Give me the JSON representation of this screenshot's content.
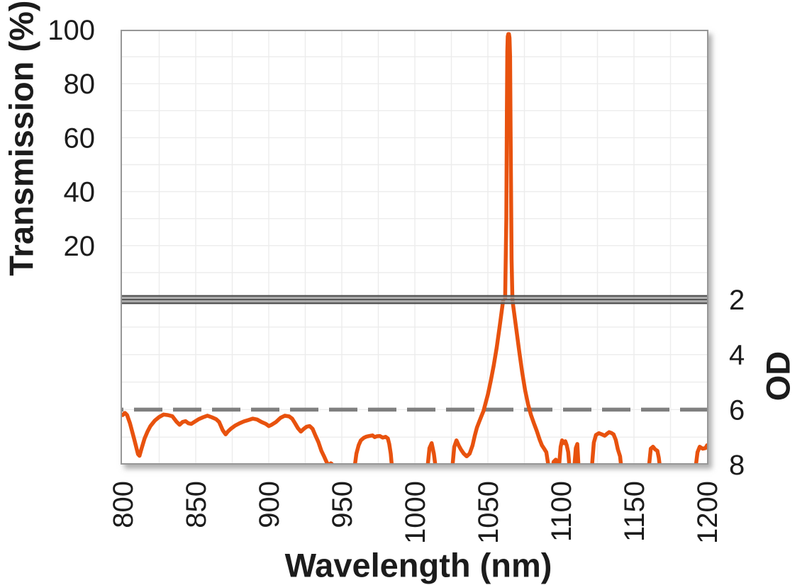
{
  "figure": {
    "background": "#FFFFFF",
    "curve_color": "#E8520E",
    "reference_line_color": "#7F7F7F",
    "grid_color": "#ECECEC",
    "border_color": "#979797",
    "separator_dark": "#555555",
    "separator_light": "#9E9E9E",
    "text_color": "#1C1C1C"
  },
  "chart_data": {
    "type": "line",
    "description": "Laser-line bandpass filter spectrum with broken y-axis: transmission (%) top panel, optical density (OD) bottom panel",
    "x_axis": {
      "label": "Wavelength (nm)",
      "min": 800,
      "max": 1200,
      "ticks": [
        800,
        850,
        900,
        950,
        1000,
        1050,
        1100,
        1150,
        1200
      ],
      "minor_grid_step_nm": 25
    },
    "y_axis_transmission": {
      "label": "Transmission (%)",
      "min": 0,
      "max": 100,
      "ticks": [
        100,
        80,
        60,
        40,
        20
      ],
      "grid_step": 10
    },
    "y_axis_od": {
      "label": "OD",
      "min": 2,
      "max": 8,
      "ticks": [
        2,
        4,
        6,
        8
      ],
      "grid_step": 1,
      "increases": "downward"
    },
    "axis_break_between_panels": true,
    "reference_line": {
      "style": "dashed",
      "od": 6
    },
    "peak": {
      "wavelength_nm": 1064,
      "transmission_pct": 98.4,
      "points_nm_pct": [
        [
          1061.8,
          0
        ],
        [
          1062.6,
          30
        ],
        [
          1063,
          70
        ],
        [
          1063.3,
          92
        ],
        [
          1063.6,
          97.5
        ],
        [
          1064,
          98.4
        ],
        [
          1064.4,
          98.4
        ],
        [
          1064.8,
          97
        ],
        [
          1065.2,
          90
        ],
        [
          1065.6,
          60
        ],
        [
          1066.2,
          15
        ],
        [
          1066.8,
          0
        ]
      ]
    },
    "blocking_segments_nm_od": [
      [
        [
          800,
          6.2
        ],
        [
          801.5,
          6.12
        ],
        [
          803,
          6.2
        ],
        [
          805,
          6.5
        ],
        [
          808,
          7.1
        ],
        [
          810.5,
          7.62
        ],
        [
          811.5,
          7.68
        ],
        [
          813,
          7.4
        ],
        [
          815,
          7.05
        ],
        [
          817,
          6.8
        ],
        [
          819,
          6.6
        ],
        [
          822,
          6.4
        ],
        [
          825,
          6.27
        ],
        [
          828,
          6.18
        ],
        [
          831,
          6.2
        ],
        [
          834,
          6.24
        ],
        [
          837,
          6.45
        ],
        [
          839,
          6.55
        ],
        [
          841,
          6.45
        ],
        [
          843,
          6.42
        ],
        [
          845,
          6.5
        ],
        [
          847,
          6.52
        ],
        [
          849,
          6.45
        ],
        [
          852,
          6.35
        ],
        [
          855,
          6.28
        ],
        [
          858,
          6.22
        ],
        [
          861,
          6.28
        ],
        [
          864,
          6.35
        ],
        [
          866,
          6.45
        ],
        [
          868.5,
          6.75
        ],
        [
          870.5,
          6.9
        ],
        [
          872,
          6.8
        ],
        [
          874,
          6.7
        ],
        [
          877,
          6.58
        ],
        [
          880,
          6.5
        ],
        [
          883,
          6.43
        ],
        [
          886,
          6.38
        ],
        [
          889,
          6.33
        ],
        [
          892,
          6.36
        ],
        [
          895,
          6.45
        ],
        [
          898,
          6.52
        ],
        [
          900,
          6.6
        ],
        [
          902,
          6.55
        ],
        [
          905,
          6.45
        ],
        [
          908,
          6.3
        ],
        [
          911,
          6.22
        ],
        [
          914,
          6.25
        ],
        [
          916,
          6.33
        ],
        [
          918,
          6.5
        ],
        [
          920,
          6.68
        ],
        [
          922,
          6.8
        ],
        [
          924,
          6.7
        ],
        [
          926,
          6.62
        ],
        [
          928,
          6.6
        ],
        [
          930,
          6.7
        ],
        [
          932,
          6.95
        ],
        [
          934,
          7.18
        ],
        [
          936,
          7.5
        ],
        [
          938,
          7.72
        ],
        [
          939.5,
          7.9
        ],
        [
          941,
          8.05
        ],
        [
          942.5,
          7.95
        ],
        [
          944,
          8.02
        ],
        [
          945,
          8.2
        ]
      ],
      [
        [
          958.5,
          8.2
        ],
        [
          960,
          7.6
        ],
        [
          961.5,
          7.3
        ],
        [
          963,
          7.12
        ],
        [
          965,
          7.03
        ],
        [
          967,
          6.98
        ],
        [
          969,
          6.96
        ],
        [
          971,
          6.94
        ],
        [
          972.5,
          7.0
        ],
        [
          974,
          6.97
        ],
        [
          976,
          6.96
        ],
        [
          978,
          7.02
        ],
        [
          980,
          6.99
        ],
        [
          981.5,
          7.05
        ],
        [
          982.5,
          7.25
        ],
        [
          983.5,
          7.6
        ],
        [
          984.5,
          8.2
        ]
      ],
      [
        [
          1008.5,
          8.2
        ],
        [
          1010,
          7.4
        ],
        [
          1011.5,
          7.22
        ],
        [
          1013,
          7.6
        ],
        [
          1014,
          8.0
        ],
        [
          1015,
          8.2
        ]
      ],
      [
        [
          1025.5,
          8.2
        ],
        [
          1027,
          7.35
        ],
        [
          1028.5,
          7.12
        ],
        [
          1030,
          7.3
        ],
        [
          1031.5,
          7.45
        ],
        [
          1033.5,
          7.6
        ],
        [
          1035.5,
          7.7
        ],
        [
          1037.5,
          7.6
        ],
        [
          1039.5,
          7.3
        ],
        [
          1041,
          6.95
        ],
        [
          1042.5,
          6.65
        ],
        [
          1044,
          6.45
        ],
        [
          1045.5,
          6.25
        ],
        [
          1047,
          6.05
        ],
        [
          1048.5,
          5.75
        ],
        [
          1050,
          5.45
        ],
        [
          1052,
          4.95
        ],
        [
          1054,
          4.4
        ],
        [
          1056,
          3.75
        ],
        [
          1058,
          3.0
        ],
        [
          1059.5,
          2.4
        ],
        [
          1061,
          1.8
        ],
        [
          1062.5,
          1.3
        ],
        [
          1064,
          1.1
        ],
        [
          1065.5,
          1.3
        ],
        [
          1066.5,
          1.9
        ],
        [
          1068,
          2.5
        ],
        [
          1069.5,
          3.1
        ],
        [
          1071.5,
          3.9
        ],
        [
          1073.5,
          4.65
        ],
        [
          1075.5,
          5.3
        ],
        [
          1077.5,
          5.8
        ],
        [
          1079.5,
          6.2
        ],
        [
          1081.5,
          6.5
        ],
        [
          1083.5,
          6.78
        ],
        [
          1085.5,
          7.1
        ],
        [
          1087,
          7.3
        ],
        [
          1088.5,
          7.42
        ],
        [
          1090,
          7.55
        ],
        [
          1091,
          7.9
        ],
        [
          1091.8,
          8.2
        ]
      ],
      [
        [
          1094,
          8.2
        ],
        [
          1095,
          7.9
        ],
        [
          1096.5,
          7.82
        ],
        [
          1097.5,
          8.2
        ]
      ],
      [
        [
          1098.5,
          8.2
        ],
        [
          1099.8,
          7.35
        ],
        [
          1100.8,
          7.12
        ],
        [
          1102,
          7.22
        ],
        [
          1103,
          7.15
        ],
        [
          1104,
          7.3
        ],
        [
          1105,
          7.55
        ],
        [
          1106,
          8.2
        ]
      ],
      [
        [
          1109,
          8.2
        ],
        [
          1110.2,
          7.4
        ],
        [
          1111.2,
          7.25
        ],
        [
          1112.2,
          8.2
        ]
      ],
      [
        [
          1121,
          8.2
        ],
        [
          1122.5,
          7.2
        ],
        [
          1124,
          6.92
        ],
        [
          1126,
          6.86
        ],
        [
          1128,
          6.9
        ],
        [
          1130,
          6.95
        ],
        [
          1131.5,
          6.88
        ],
        [
          1133,
          6.82
        ],
        [
          1134.5,
          6.85
        ],
        [
          1136,
          6.9
        ],
        [
          1137.5,
          7.1
        ],
        [
          1139,
          7.45
        ],
        [
          1140.5,
          7.7
        ],
        [
          1141.5,
          8.2
        ]
      ],
      [
        [
          1160,
          8.2
        ],
        [
          1161.5,
          7.42
        ],
        [
          1163,
          7.35
        ],
        [
          1164.5,
          7.45
        ],
        [
          1166,
          7.5
        ],
        [
          1167,
          7.75
        ],
        [
          1168,
          8.2
        ]
      ],
      [
        [
          1192,
          8.2
        ],
        [
          1193.5,
          7.55
        ],
        [
          1195,
          7.35
        ],
        [
          1197,
          7.42
        ],
        [
          1199,
          7.4
        ],
        [
          1200,
          7.3
        ]
      ]
    ]
  }
}
